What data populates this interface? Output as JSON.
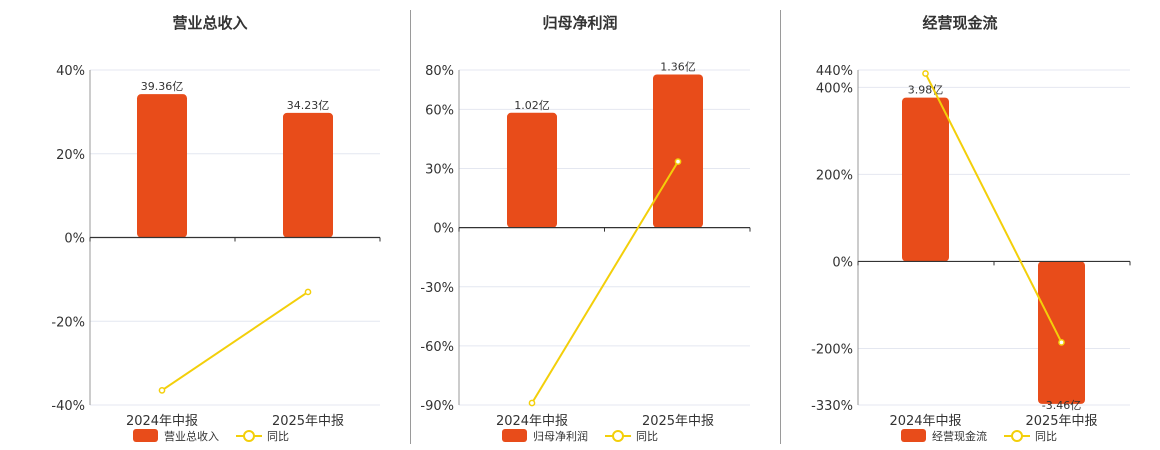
{
  "colors": {
    "bar": "#e84c1a",
    "line": "#f3cf0a",
    "grid": "#e4e7f0",
    "axis": "#333333"
  },
  "chart_data": [
    {
      "type": "bar+line",
      "title": "营业总收入",
      "categories": [
        "2024年中报",
        "2025年中报"
      ],
      "series": [
        {
          "name": "营业总收入",
          "type": "bar",
          "values": [
            39.36,
            34.23
          ],
          "labels": [
            "39.36亿",
            "34.23亿"
          ]
        },
        {
          "name": "同比",
          "type": "line",
          "values": [
            -36.5,
            -13.0
          ]
        }
      ],
      "y_ticks": [
        40,
        20,
        0,
        -20,
        -40
      ],
      "y_tick_labels": [
        "40%",
        "20%",
        "0%",
        "-20%",
        "-40%"
      ],
      "ylim": [
        -40,
        40
      ],
      "bar_axis_max": 46,
      "grid": true,
      "legend": "bottom"
    },
    {
      "type": "bar+line",
      "title": "归母净利润",
      "categories": [
        "2024年中报",
        "2025年中报"
      ],
      "series": [
        {
          "name": "归母净利润",
          "type": "bar",
          "values": [
            1.02,
            1.36
          ],
          "labels": [
            "1.02亿",
            "1.36亿"
          ]
        },
        {
          "name": "同比",
          "type": "line",
          "values": [
            -89.0,
            33.5
          ]
        }
      ],
      "y_ticks": [
        80,
        60,
        30,
        0,
        -30,
        -60,
        -90
      ],
      "y_tick_labels": [
        "80%",
        "60%",
        "30%",
        "0%",
        "-30%",
        "-60%",
        "-90%"
      ],
      "ylim": [
        -90,
        80
      ],
      "bar_axis_max": 1.4,
      "grid": true,
      "legend": "bottom"
    },
    {
      "type": "bar+line",
      "title": "经营现金流",
      "categories": [
        "2024年中报",
        "2025年中报"
      ],
      "series": [
        {
          "name": "经营现金流",
          "type": "bar",
          "values": [
            3.98,
            -3.46
          ],
          "labels": [
            "3.98亿",
            "-3.46亿"
          ]
        },
        {
          "name": "同比",
          "type": "line",
          "values": [
            432,
            -186
          ]
        }
      ],
      "y_ticks": [
        440,
        400,
        200,
        0,
        -200,
        -330
      ],
      "y_tick_labels": [
        "440%",
        "400%",
        "200%",
        "0%",
        "-200%",
        "-330%"
      ],
      "ylim": [
        -330,
        440
      ],
      "bar_axis_max": 4.65,
      "grid": true,
      "legend": "bottom"
    }
  ]
}
